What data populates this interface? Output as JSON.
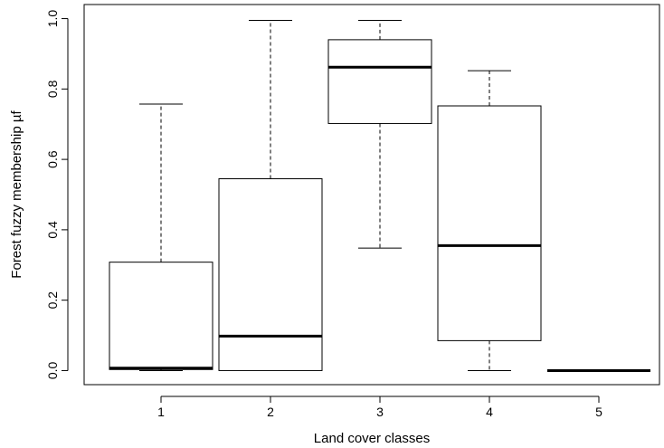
{
  "chart_data": {
    "type": "boxplot",
    "title": "",
    "xlabel": "Land cover classes",
    "ylabel": "Forest fuzzy membership µf",
    "ylim": [
      -0.04,
      1.04
    ],
    "yticks": [
      "0.0",
      "0.2",
      "0.4",
      "0.6",
      "0.8",
      "1.0"
    ],
    "yticks_values": [
      0.0,
      0.2,
      0.4,
      0.6,
      0.8,
      1.0
    ],
    "categories": [
      "1",
      "2",
      "3",
      "4",
      "5"
    ],
    "boxes": [
      {
        "category": "1",
        "min": 0.0,
        "q1": 0.003,
        "median": 0.007,
        "q3": 0.308,
        "max": 0.757
      },
      {
        "category": "2",
        "min": 0.0,
        "q1": 0.0,
        "median": 0.098,
        "q3": 0.545,
        "max": 0.995
      },
      {
        "category": "3",
        "min": 0.348,
        "q1": 0.702,
        "median": 0.862,
        "q3": 0.94,
        "max": 0.995
      },
      {
        "category": "4",
        "min": 0.0,
        "q1": 0.085,
        "median": 0.355,
        "q3": 0.752,
        "max": 0.852
      },
      {
        "category": "5",
        "min": 0.0,
        "q1": 0.0,
        "median": 0.0,
        "q3": 0.0,
        "max": 0.0
      }
    ],
    "grid": false,
    "colors": {
      "box_fill": "#ffffff",
      "stroke": "#000000"
    }
  }
}
